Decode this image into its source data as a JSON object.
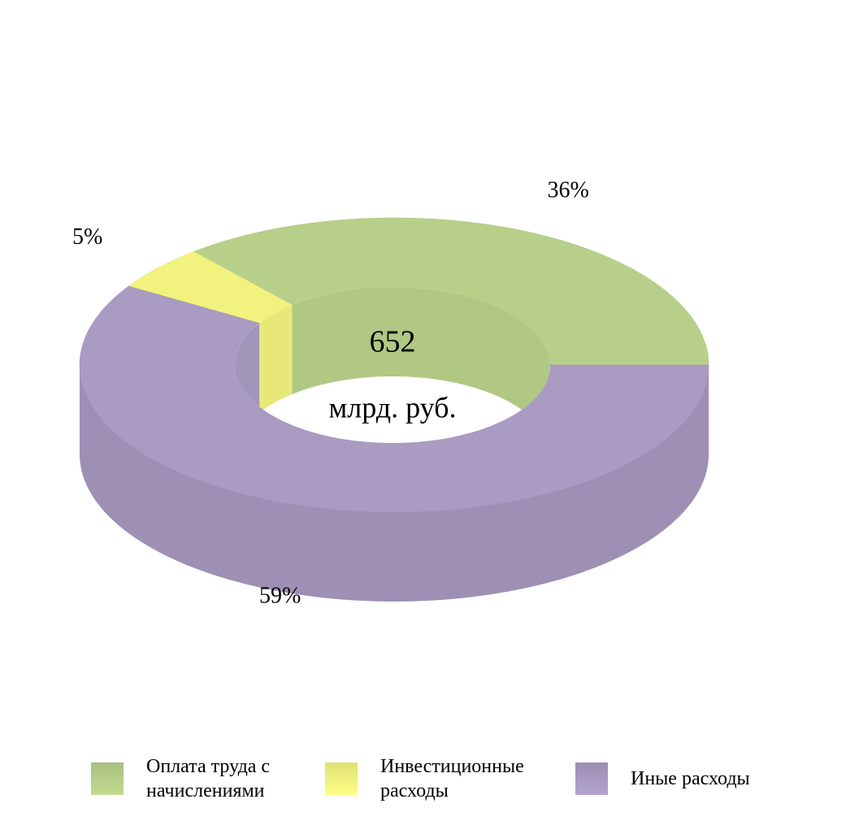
{
  "chart_data": {
    "type": "donut",
    "categories": [
      "Оплата труда с начислениями",
      "Инвестиционные расходы",
      "Иные расходы"
    ],
    "values": [
      36,
      5,
      59
    ],
    "value_labels": [
      "36%",
      "5%",
      "59%"
    ],
    "colors": [
      "#b8cf8a",
      "#f2f27e",
      "#a99bc2"
    ],
    "total": 652,
    "total_unit": "млрд. руб."
  }
}
